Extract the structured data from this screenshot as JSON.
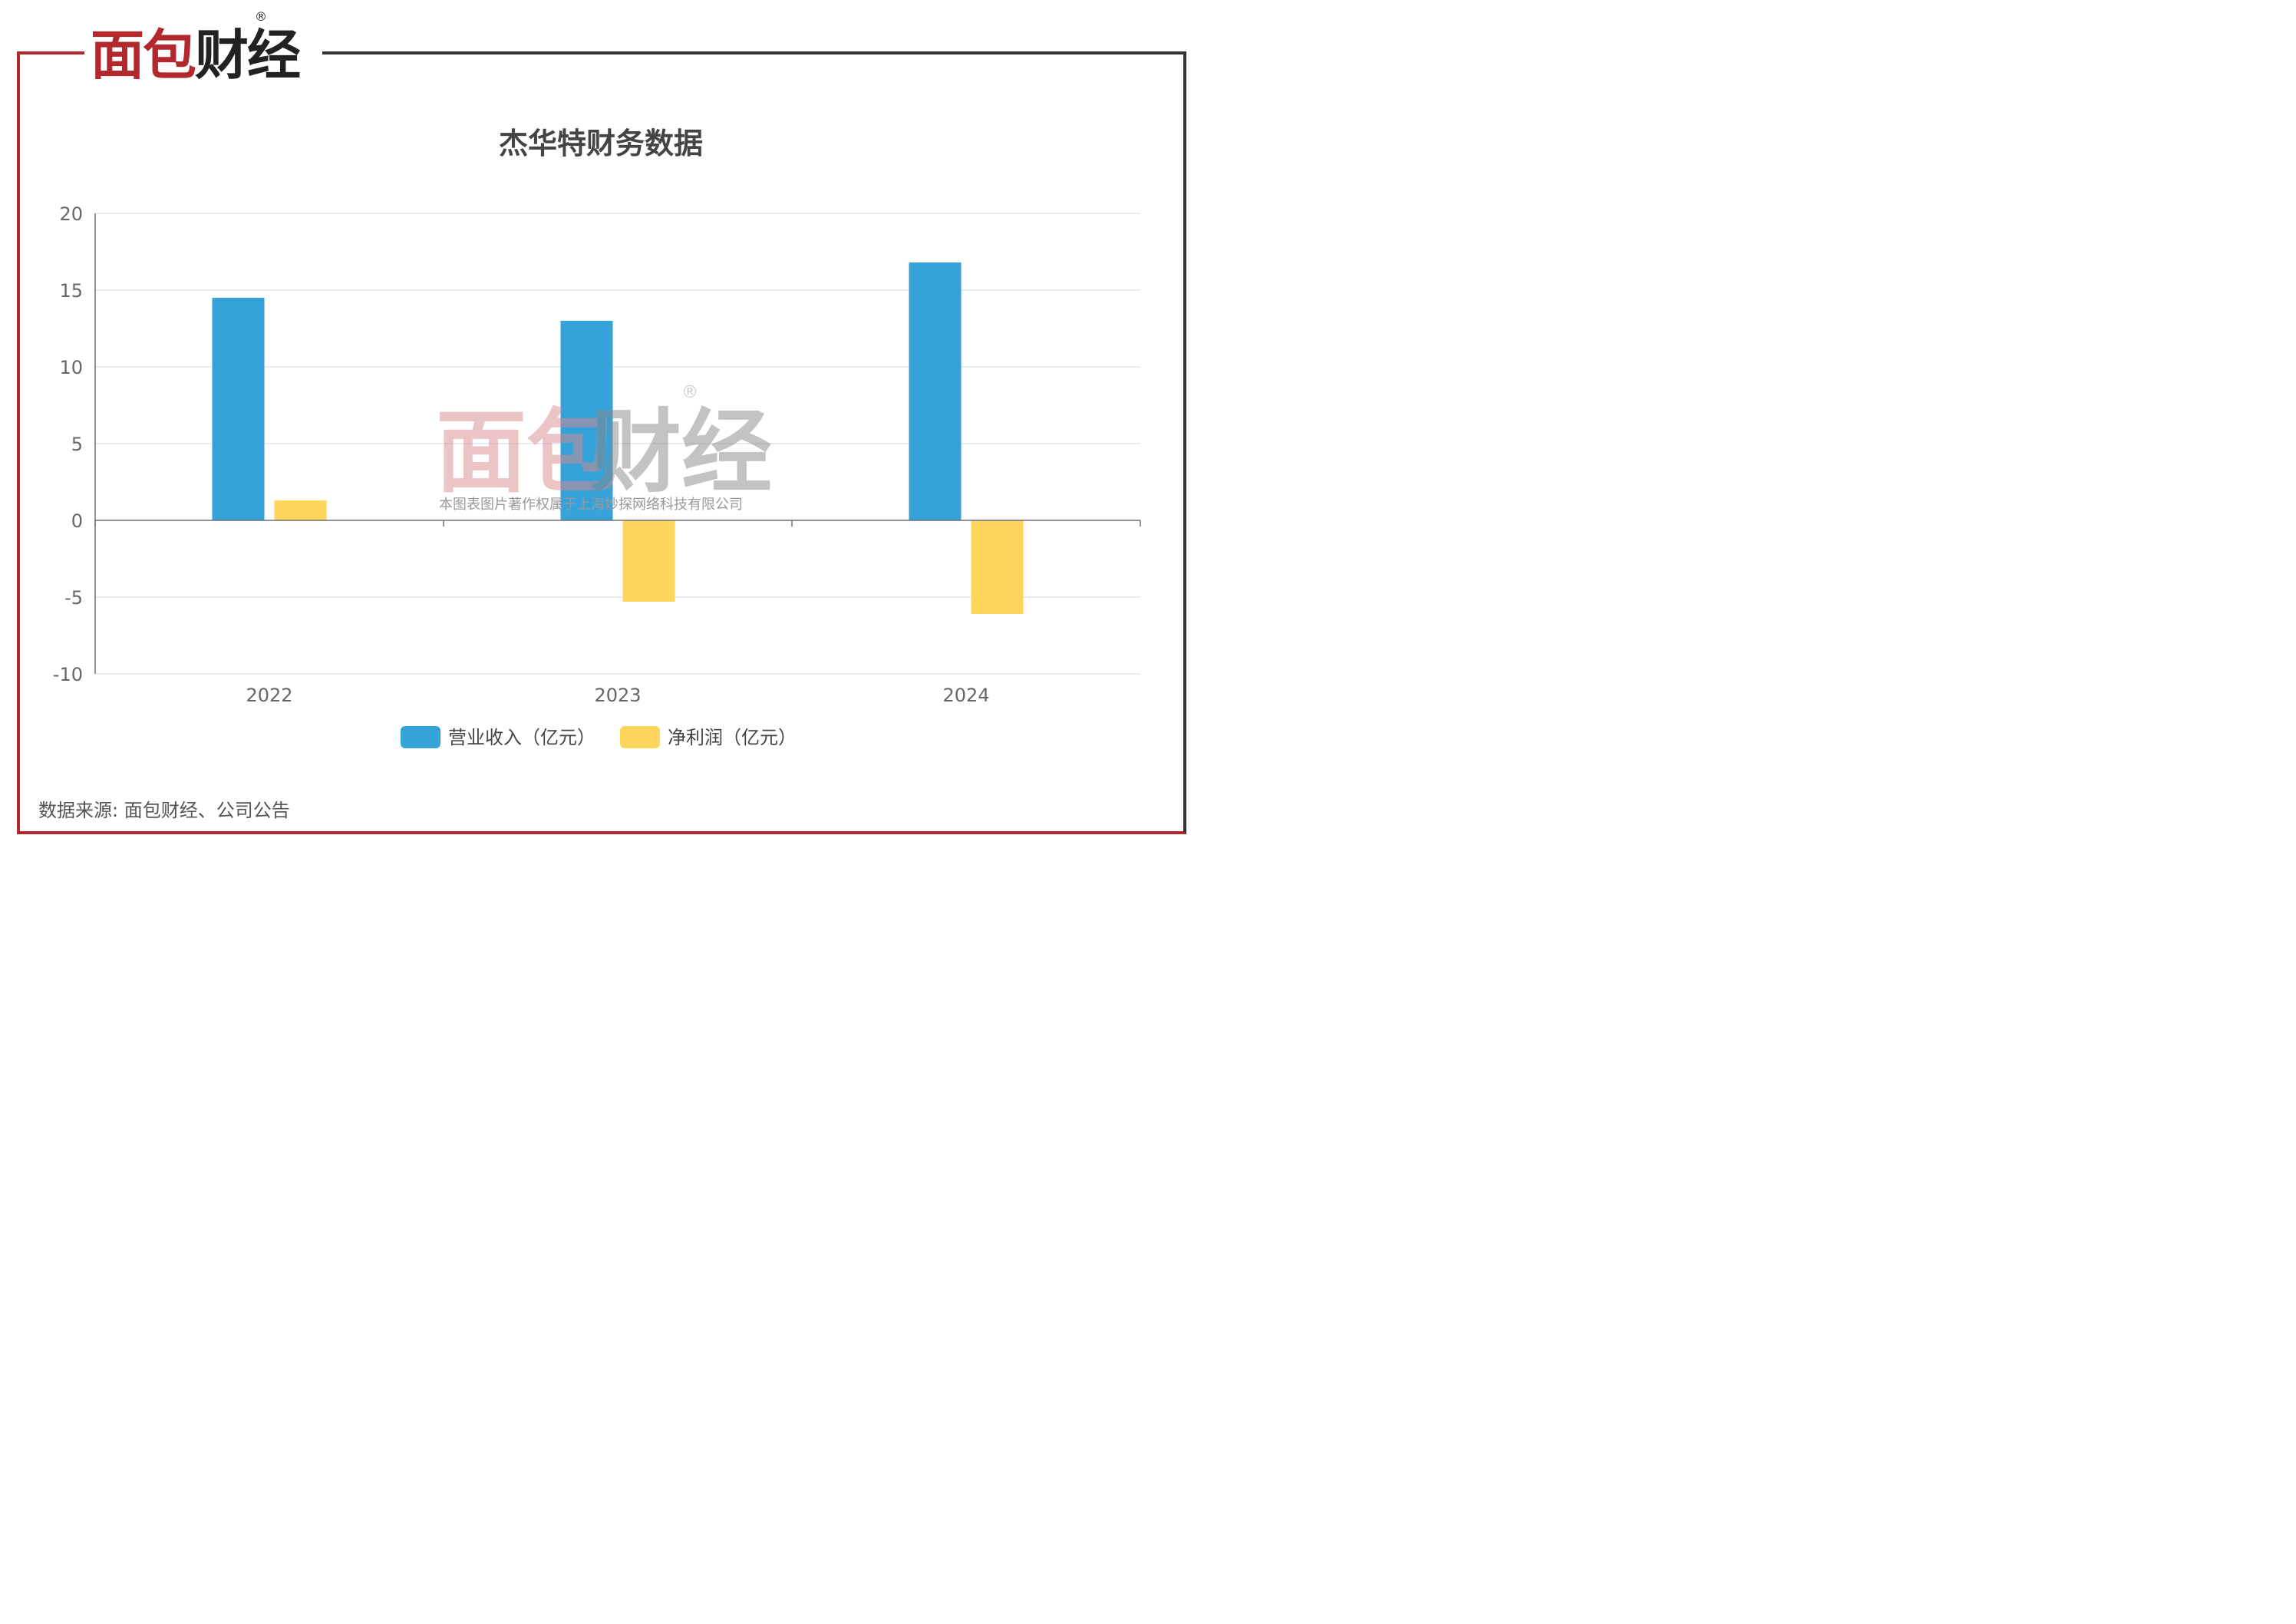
{
  "logo": {
    "left": "面包",
    "right": "财经",
    "registered": "®"
  },
  "source": "数据来源: 面包财经、公司公告",
  "watermark": {
    "brand_left": "面包",
    "brand_right": "财经",
    "registered": "®",
    "credit": "本图表图片著作权属于上海妙探网络科技有限公司"
  },
  "chart_data": {
    "type": "bar",
    "title": "杰华特财务数据",
    "categories": [
      "2022",
      "2023",
      "2024"
    ],
    "series": [
      {
        "name": "营业收入（亿元）",
        "color": "#36a2da",
        "values": [
          14.5,
          13.0,
          16.8
        ]
      },
      {
        "name": "净利润（亿元）",
        "color": "#fed65b",
        "values": [
          1.3,
          -5.3,
          -6.1
        ]
      }
    ],
    "ylim": [
      -10,
      20
    ],
    "yticks": [
      "20",
      "15",
      "10",
      "5",
      "0",
      "-5",
      "-10"
    ],
    "grid": true,
    "legend": "bottom"
  }
}
